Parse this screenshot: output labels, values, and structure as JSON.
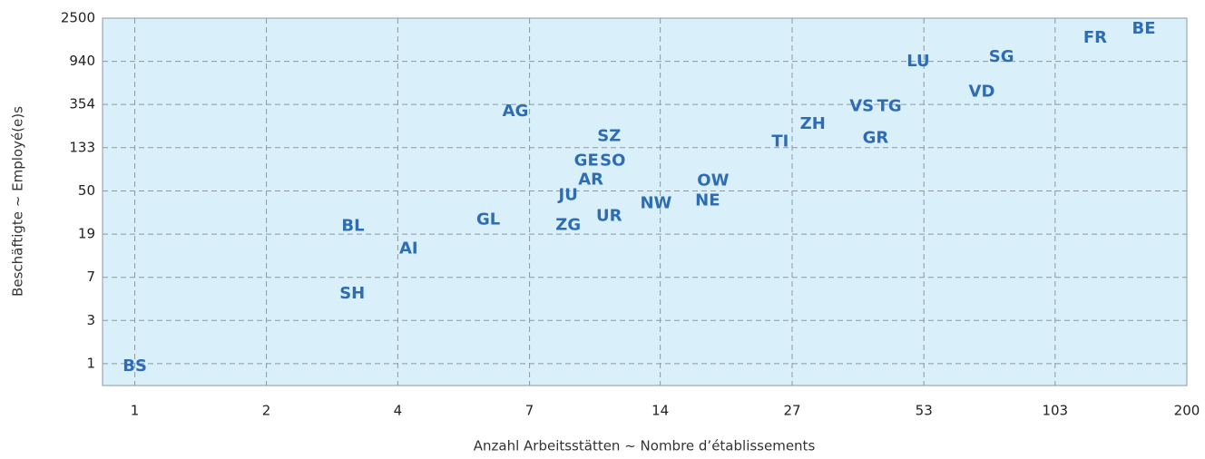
{
  "chart_data": {
    "type": "scatter",
    "xlabel": "Anzahl Arbeitsstätten   ~   Nombre d’établissements",
    "ylabel": "Beschäftigte   ~   Employé(e)s",
    "xscale": "log",
    "yscale": "log",
    "grid": true,
    "background": "#d9eff9",
    "color": "#2e6db4",
    "xlim": [
      0.85,
      200
    ],
    "ylim": [
      0.61,
      2500
    ],
    "xticks": [
      1,
      {
        "value": 1.94,
        "label": "2"
      },
      {
        "value": 3.76,
        "label": "4"
      },
      {
        "value": 7.3,
        "label": "7"
      },
      {
        "value": 14.1,
        "label": "14"
      },
      {
        "value": 27.4,
        "label": "27"
      },
      {
        "value": 53.2,
        "label": "53"
      },
      {
        "value": 103,
        "label": "103"
      },
      200
    ],
    "yticks": [
      1,
      {
        "value": 2.66,
        "label": "3"
      },
      {
        "value": 7.07,
        "label": "7"
      },
      {
        "value": 18.8,
        "label": "19"
      },
      50,
      {
        "value": 133.2,
        "label": "133"
      },
      {
        "value": 354.3,
        "label": "354"
      },
      {
        "value": 940,
        "label": "940"
      },
      2500
    ],
    "labels": [
      "BS",
      "SH",
      "BL",
      "AI",
      "GL",
      "AG",
      "ZG",
      "JU",
      "AR",
      "GE",
      "SO",
      "SZ",
      "UR",
      "NW",
      "NE",
      "OW",
      "TI",
      "ZH",
      "VS",
      "TG",
      "GR",
      "LU",
      "VD",
      "SG",
      "FR",
      "BE"
    ],
    "x": [
      1.0,
      2.99,
      3.0,
      3.97,
      5.93,
      6.8,
      8.87,
      8.87,
      9.94,
      9.72,
      11.1,
      10.9,
      10.9,
      13.8,
      17.9,
      18.4,
      25.8,
      30.4,
      38.9,
      44.7,
      41.7,
      51.7,
      71.2,
      78.6,
      126,
      161
    ],
    "y": [
      0.94,
      4.88,
      22.4,
      13.4,
      25.9,
      300,
      22.9,
      45.1,
      64,
      98.7,
      98.7,
      172,
      28.1,
      37.5,
      39.9,
      62.7,
      152,
      225,
      339,
      339,
      165,
      930,
      471,
      1032,
      1590,
      1953
    ]
  }
}
